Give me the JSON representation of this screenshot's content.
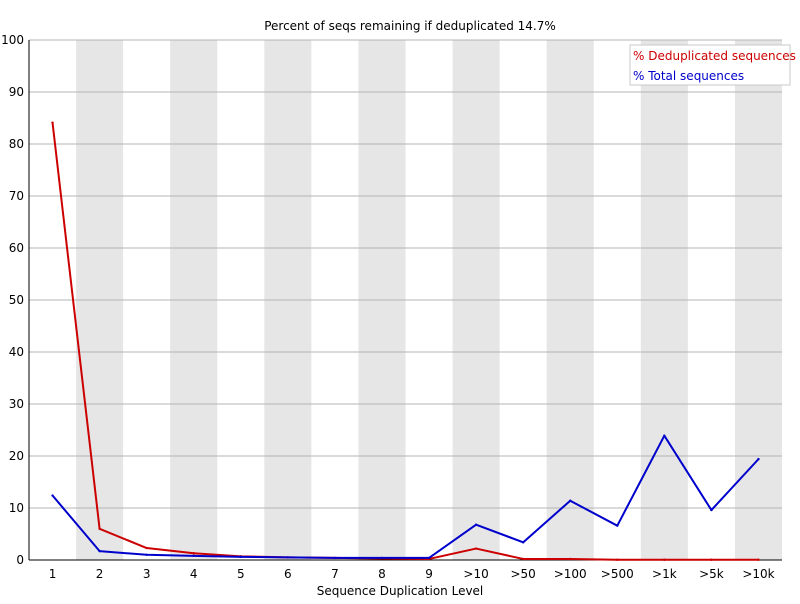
{
  "chart_data": {
    "type": "line",
    "title": "Percent of seqs remaining if deduplicated 14.7%",
    "xlabel": "Sequence Duplication Level",
    "ylabel": "",
    "categories": [
      "1",
      "2",
      "3",
      "4",
      "5",
      "6",
      "7",
      "8",
      "9",
      ">10",
      ">50",
      ">100",
      ">500",
      ">1k",
      ">5k",
      ">10k"
    ],
    "ylim": [
      0,
      100
    ],
    "yticks": [
      0,
      10,
      20,
      30,
      40,
      50,
      60,
      70,
      80,
      90,
      100
    ],
    "grid": true,
    "alternating_bands": true,
    "legend_position": "top-right",
    "series": [
      {
        "name": "% Deduplicated sequences",
        "color": "#cc0000",
        "values": [
          84.1,
          6.0,
          2.3,
          1.3,
          0.7,
          0.5,
          0.4,
          0.3,
          0.2,
          2.2,
          0.2,
          0.2,
          0.05,
          0.05,
          0.05,
          0.05
        ]
      },
      {
        "name": "% Total sequences",
        "color": "#0000cc",
        "values": [
          12.4,
          1.7,
          1.0,
          0.8,
          0.6,
          0.5,
          0.4,
          0.4,
          0.4,
          6.8,
          3.4,
          11.4,
          6.6,
          23.9,
          9.6,
          19.4
        ]
      }
    ]
  }
}
